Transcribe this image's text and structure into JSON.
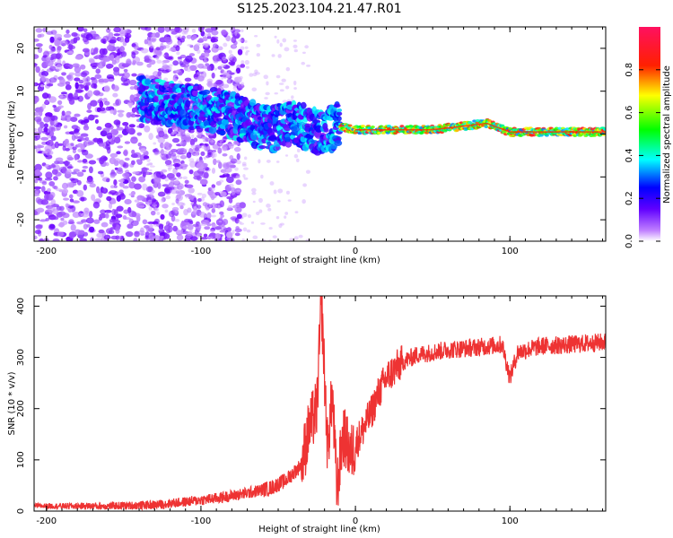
{
  "title": "S125.2023.104.21.47.R01",
  "chart_data": [
    {
      "type": "heatmap",
      "xlabel": "Height of straight line (km)",
      "ylabel": "Frequency (Hz)",
      "xlim": [
        -208,
        162
      ],
      "ylim": [
        -25,
        25
      ],
      "xticks": [
        -200,
        -100,
        0,
        100
      ],
      "yticks": [
        -20,
        -10,
        0,
        10,
        20
      ],
      "colorbar": {
        "label": "Normalized spectral amplitude",
        "range": [
          0,
          1
        ],
        "ticks": [
          0.0,
          0.2,
          0.4,
          0.6,
          0.8
        ],
        "colors": [
          "#ffffff",
          "#8000ff",
          "#0000ff",
          "#00ffff",
          "#00ff00",
          "#ffff00",
          "#ff0000",
          "#ff0080"
        ]
      },
      "ridge": [
        {
          "x": -135,
          "y": 8
        },
        {
          "x": -120,
          "y": 7
        },
        {
          "x": -100,
          "y": 6
        },
        {
          "x": -85,
          "y": 5
        },
        {
          "x": -70,
          "y": 3
        },
        {
          "x": -55,
          "y": 1
        },
        {
          "x": -40,
          "y": 3
        },
        {
          "x": -30,
          "y": 1
        },
        {
          "x": -20,
          "y": 0.5
        },
        {
          "x": -12,
          "y": 2
        },
        {
          "x": 0,
          "y": 1
        },
        {
          "x": 50,
          "y": 1
        },
        {
          "x": 85,
          "y": 2.5
        },
        {
          "x": 100,
          "y": 0.5
        },
        {
          "x": 160,
          "y": 0.5
        }
      ]
    },
    {
      "type": "line",
      "xlabel": "Height of straight line (km)",
      "ylabel": "SNR (10 * v/v)",
      "xlim": [
        -208,
        162
      ],
      "ylim": [
        0,
        420
      ],
      "xticks": [
        -200,
        -100,
        0,
        100
      ],
      "yticks": [
        0,
        100,
        200,
        300,
        400
      ],
      "color": "#ee3333",
      "series": [
        {
          "x": -208,
          "y": 10
        },
        {
          "x": -160,
          "y": 10
        },
        {
          "x": -130,
          "y": 12
        },
        {
          "x": -110,
          "y": 18
        },
        {
          "x": -90,
          "y": 25
        },
        {
          "x": -70,
          "y": 35
        },
        {
          "x": -55,
          "y": 45
        },
        {
          "x": -45,
          "y": 60
        },
        {
          "x": -35,
          "y": 90
        },
        {
          "x": -30,
          "y": 160
        },
        {
          "x": -25,
          "y": 200
        },
        {
          "x": -22,
          "y": 410
        },
        {
          "x": -18,
          "y": 120
        },
        {
          "x": -15,
          "y": 230
        },
        {
          "x": -12,
          "y": 40
        },
        {
          "x": -8,
          "y": 150
        },
        {
          "x": -3,
          "y": 110
        },
        {
          "x": 0,
          "y": 130
        },
        {
          "x": 5,
          "y": 160
        },
        {
          "x": 10,
          "y": 190
        },
        {
          "x": 15,
          "y": 230
        },
        {
          "x": 20,
          "y": 260
        },
        {
          "x": 30,
          "y": 290
        },
        {
          "x": 40,
          "y": 305
        },
        {
          "x": 60,
          "y": 315
        },
        {
          "x": 80,
          "y": 320
        },
        {
          "x": 95,
          "y": 325
        },
        {
          "x": 100,
          "y": 260
        },
        {
          "x": 105,
          "y": 310
        },
        {
          "x": 120,
          "y": 322
        },
        {
          "x": 140,
          "y": 325
        },
        {
          "x": 162,
          "y": 330
        }
      ]
    }
  ]
}
